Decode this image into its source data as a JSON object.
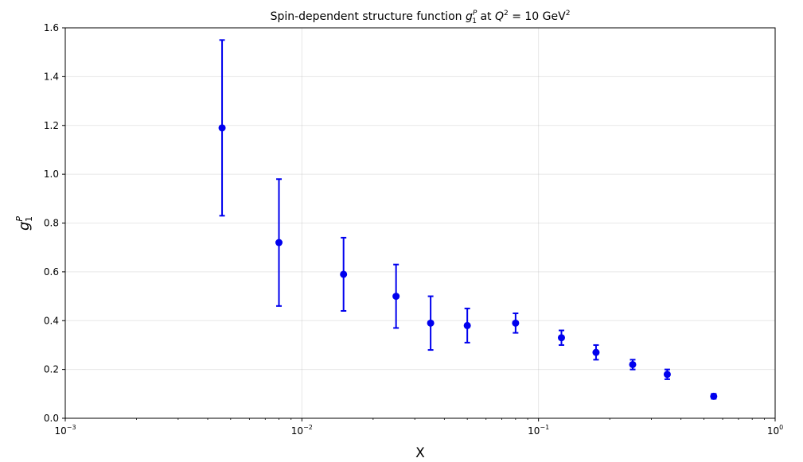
{
  "chart_data": {
    "type": "scatter",
    "title": {
      "prefix": "Spin-dependent structure function ",
      "symbol": "g",
      "symbol_sub": "1",
      "symbol_sup": "P",
      "middle": " at ",
      "q": "Q",
      "q_sup": "2",
      "q_value": " = 10 GeV",
      "unit_sup": "2"
    },
    "xlabel": "X",
    "ylabel": {
      "symbol": "g",
      "sub": "1",
      "sup": "P"
    },
    "xscale": "log",
    "xlim": [
      0.001,
      1
    ],
    "ylim": [
      0,
      1.6
    ],
    "grid": true,
    "x_ticks": [
      {
        "base": "10",
        "exp": "−3",
        "value": 0.001
      },
      {
        "base": "10",
        "exp": "−2",
        "value": 0.01
      },
      {
        "base": "10",
        "exp": "−1",
        "value": 0.1
      },
      {
        "base": "10",
        "exp": "0",
        "value": 1
      }
    ],
    "y_ticks": [
      {
        "label": "0.0",
        "value": 0.0
      },
      {
        "label": "0.2",
        "value": 0.2
      },
      {
        "label": "0.4",
        "value": 0.4
      },
      {
        "label": "0.6",
        "value": 0.6
      },
      {
        "label": "0.8",
        "value": 0.8
      },
      {
        "label": "1.0",
        "value": 1.0
      },
      {
        "label": "1.2",
        "value": 1.2
      },
      {
        "label": "1.4",
        "value": 1.4
      },
      {
        "label": "1.6",
        "value": 1.6
      }
    ],
    "color": "#0000ee",
    "points": [
      {
        "x": 0.0046,
        "y": 1.19,
        "err": 0.36
      },
      {
        "x": 0.008,
        "y": 0.72,
        "err": 0.26
      },
      {
        "x": 0.015,
        "y": 0.59,
        "err": 0.15
      },
      {
        "x": 0.025,
        "y": 0.5,
        "err": 0.13
      },
      {
        "x": 0.035,
        "y": 0.39,
        "err": 0.11
      },
      {
        "x": 0.05,
        "y": 0.38,
        "err": 0.07
      },
      {
        "x": 0.08,
        "y": 0.39,
        "err": 0.04
      },
      {
        "x": 0.125,
        "y": 0.33,
        "err": 0.03
      },
      {
        "x": 0.175,
        "y": 0.27,
        "err": 0.03
      },
      {
        "x": 0.25,
        "y": 0.22,
        "err": 0.02
      },
      {
        "x": 0.35,
        "y": 0.18,
        "err": 0.02
      },
      {
        "x": 0.55,
        "y": 0.09,
        "err": 0.01
      }
    ]
  }
}
